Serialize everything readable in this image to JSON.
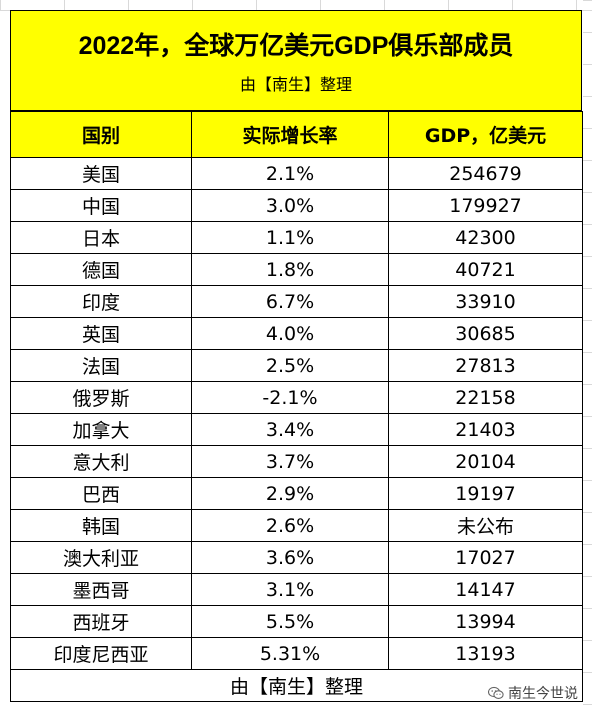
{
  "title": "2022年，全球万亿美元GDP俱乐部成员",
  "subtitle": "由【南生】整理",
  "table": {
    "headers": [
      "国别",
      "实际增长率",
      "GDP，亿美元"
    ],
    "rows": [
      [
        "美国",
        "2.1%",
        "254679"
      ],
      [
        "中国",
        "3.0%",
        "179927"
      ],
      [
        "日本",
        "1.1%",
        "42300"
      ],
      [
        "德国",
        "1.8%",
        "40721"
      ],
      [
        "印度",
        "6.7%",
        "33910"
      ],
      [
        "英国",
        "4.0%",
        "30685"
      ],
      [
        "法国",
        "2.5%",
        "27813"
      ],
      [
        "俄罗斯",
        "-2.1%",
        "22158"
      ],
      [
        "加拿大",
        "3.4%",
        "21403"
      ],
      [
        "意大利",
        "3.7%",
        "20104"
      ],
      [
        "巴西",
        "2.9%",
        "19197"
      ],
      [
        "韩国",
        "2.6%",
        "未公布"
      ],
      [
        "澳大利亚",
        "3.6%",
        "17027"
      ],
      [
        "墨西哥",
        "3.1%",
        "14147"
      ],
      [
        "西班牙",
        "5.5%",
        "13994"
      ],
      [
        "印度尼西亚",
        "5.31%",
        "13193"
      ]
    ]
  },
  "footer": "由【南生】整理",
  "watermark": {
    "icon": "wechat-icon",
    "text": "南生今世说"
  },
  "colors": {
    "header_fill": "#ffff00",
    "border": "#000000"
  }
}
